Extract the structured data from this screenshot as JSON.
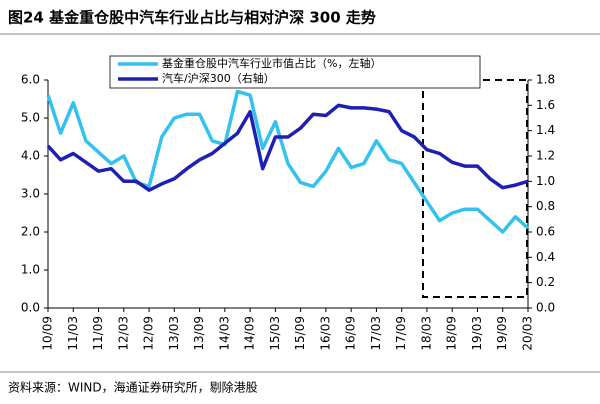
{
  "chart_data": {
    "type": "line",
    "title": "图24 基金重仓股中汽车行业占比与相对沪深 300 走势",
    "source": "资料来源：WIND，海通证券研究所，剔除港股",
    "categories": [
      "10/09",
      null,
      "11/03",
      null,
      "11/09",
      null,
      "12/03",
      null,
      "12/09",
      null,
      "13/03",
      null,
      "13/09",
      null,
      "14/03",
      null,
      "14/09",
      null,
      "15/03",
      null,
      "15/09",
      null,
      "16/03",
      null,
      "16/09",
      null,
      "17/03",
      null,
      "17/09",
      null,
      "18/03",
      null,
      "18/09",
      null,
      "19/03",
      null,
      "19/09",
      null,
      "20/03"
    ],
    "series": [
      {
        "name": "基金重仓股中汽车行业市值占比（%，左轴）",
        "color": "#33c1f0",
        "values": [
          5.6,
          4.6,
          5.4,
          4.4,
          4.1,
          3.8,
          4.0,
          3.3,
          3.2,
          4.5,
          5.0,
          5.1,
          5.1,
          4.4,
          4.3,
          5.7,
          5.6,
          4.2,
          4.9,
          3.8,
          3.3,
          3.2,
          3.6,
          4.2,
          3.7,
          3.8,
          4.4,
          3.9,
          3.8,
          3.3,
          2.8,
          2.3,
          2.5,
          2.6,
          2.6,
          2.3,
          2.0,
          2.4,
          2.1
        ]
      },
      {
        "name": "汽车/沪深300（右轴）",
        "color": "#1f1fb4",
        "axis": "y2",
        "values": [
          1.28,
          1.17,
          1.22,
          1.15,
          1.08,
          1.1,
          1.0,
          1.0,
          0.93,
          0.98,
          1.02,
          1.1,
          1.17,
          1.22,
          1.3,
          1.38,
          1.55,
          1.1,
          1.35,
          1.35,
          1.42,
          1.53,
          1.52,
          1.6,
          1.58,
          1.58,
          1.57,
          1.55,
          1.4,
          1.35,
          1.25,
          1.22,
          1.15,
          1.12,
          1.12,
          1.02,
          0.95,
          0.97,
          1.0
        ]
      }
    ],
    "ylim": [
      0,
      6
    ],
    "yticks": [
      {
        "value": 0,
        "label": "0.0"
      },
      {
        "value": 1,
        "label": "1.0"
      },
      {
        "value": 2,
        "label": "2.0"
      },
      {
        "value": 3,
        "label": "3.0"
      },
      {
        "value": 4,
        "label": "4.0"
      },
      {
        "value": 5,
        "label": "5.0"
      },
      {
        "value": 6,
        "label": "6.0"
      }
    ],
    "y2lim": [
      0,
      1.8
    ],
    "y2ticks": [
      {
        "value": 0,
        "label": "0.0"
      },
      0.2,
      0.4,
      0.6,
      0.8,
      {
        "value": 1,
        "label": "1.0"
      },
      1.2,
      1.4,
      1.6,
      1.8
    ],
    "legend": "top"
  }
}
